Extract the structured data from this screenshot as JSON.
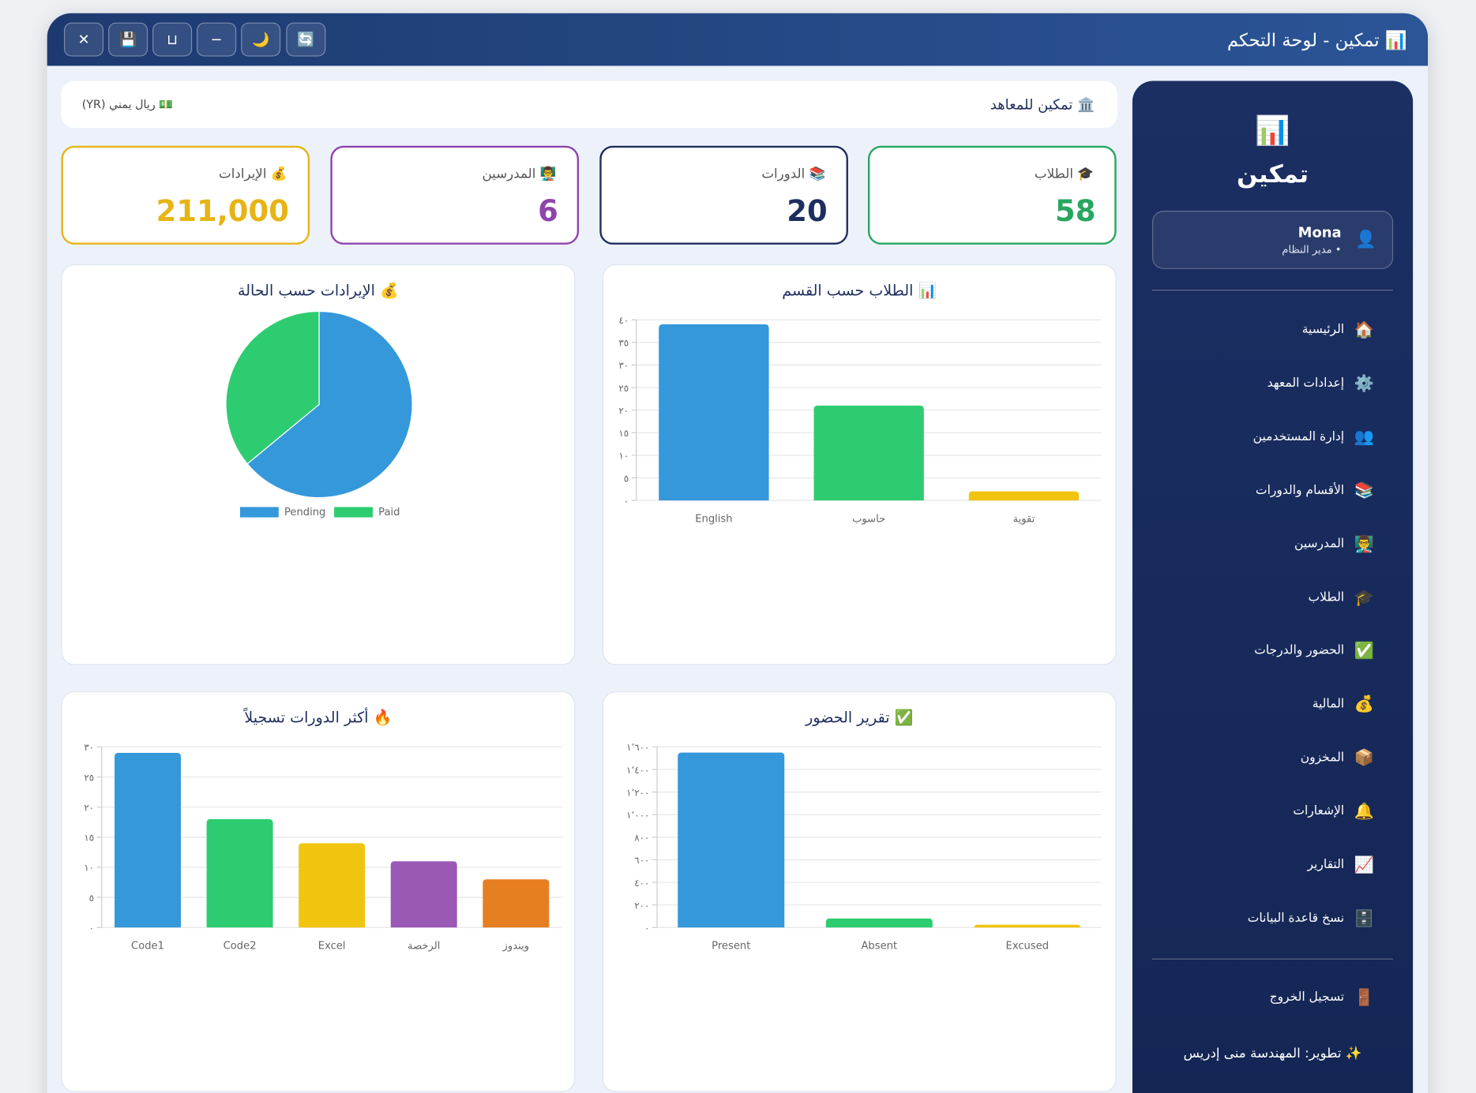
{
  "window": {
    "title": "📊 تمكين - لوحة التحكم",
    "buttons": [
      "✕",
      "💾",
      "⊔",
      "−",
      "🌙",
      "🔄"
    ]
  },
  "header": {
    "institute": "🏛️ تمكين للمعاهد",
    "currency": "💵 ريال يمني (YR)"
  },
  "stats": [
    {
      "label": "🎓 الطلاب",
      "value": 58,
      "color": "#27a65f"
    },
    {
      "label": "📚 الدورات",
      "value": 20,
      "color": "#1e2f5e"
    },
    {
      "label": "👨‍🏫 المدرسين",
      "value": 6,
      "color": "#8e44ad"
    },
    {
      "label": "💰 الإيرادات",
      "value": 211000,
      "value_label": "211,000",
      "color": "#e6b416"
    }
  ],
  "chart_data": [
    {
      "type": "bar",
      "title": "📊 الطلاب حسب القسم",
      "categories": [
        "English",
        "حاسوب",
        "تقوية"
      ],
      "values": [
        39,
        21,
        2
      ],
      "colors": [
        "#3498db",
        "#2ecc71",
        "#f1c40f"
      ],
      "ylim": [
        0,
        40
      ],
      "grid": true,
      "yticks": [
        {
          "value": 0,
          "label": "٠"
        },
        {
          "value": 5,
          "label": "٥"
        },
        {
          "value": 10,
          "label": "١٠"
        },
        {
          "value": 15,
          "label": "١٥"
        },
        {
          "value": 20,
          "label": "٢٠"
        },
        {
          "value": 25,
          "label": "٢٥"
        },
        {
          "value": 30,
          "label": "٣٠"
        },
        {
          "value": 35,
          "label": "٣٥"
        },
        {
          "value": 40,
          "label": "٤٠"
        }
      ]
    },
    {
      "type": "pie",
      "title": "💰 الإيرادات حسب الحالة",
      "categories": [
        "Pending",
        "Paid"
      ],
      "values": [
        64,
        36
      ],
      "colors": [
        "#3498db",
        "#2ecc71"
      ]
    },
    {
      "type": "bar",
      "title": "✅ تقرير الحضور",
      "categories": [
        "Present",
        "Absent",
        "Excused"
      ],
      "values": [
        1550,
        80,
        25
      ],
      "colors": [
        "#3498db",
        "#2ecc71",
        "#f1c40f"
      ],
      "ylim": [
        0,
        1600
      ],
      "grid": true,
      "yticks": [
        {
          "value": 0,
          "label": "٠"
        },
        {
          "value": 200,
          "label": "٢٠٠"
        },
        {
          "value": 400,
          "label": "٤٠٠"
        },
        {
          "value": 600,
          "label": "٦٠٠"
        },
        {
          "value": 800,
          "label": "٨٠٠"
        },
        {
          "value": 1000,
          "label": "١٬٠٠٠"
        },
        {
          "value": 1200,
          "label": "١٬٢٠٠"
        },
        {
          "value": 1400,
          "label": "١٬٤٠٠"
        },
        {
          "value": 1600,
          "label": "١٬٦٠٠"
        }
      ]
    },
    {
      "type": "bar",
      "title": "🔥 أكثر الدورات تسجيلاً",
      "categories": [
        "Code1",
        "Code2",
        "Excel",
        "الرخصة",
        "ويندوز"
      ],
      "values": [
        29,
        18,
        14,
        11,
        8
      ],
      "colors": [
        "#3498db",
        "#2ecc71",
        "#f1c40f",
        "#9b59b6",
        "#e67e22"
      ],
      "ylim": [
        0,
        30
      ],
      "grid": true,
      "yticks": [
        {
          "value": 0,
          "label": "٠"
        },
        {
          "value": 5,
          "label": "٥"
        },
        {
          "value": 10,
          "label": "١٠"
        },
        {
          "value": 15,
          "label": "١٥"
        },
        {
          "value": 20,
          "label": "٢٠"
        },
        {
          "value": 25,
          "label": "٢٥"
        },
        {
          "value": 30,
          "label": "٣٠"
        }
      ]
    }
  ],
  "sidebar": {
    "logo": "📊",
    "brand": "تمكين",
    "user": {
      "icon": "👤",
      "name": "Mona",
      "role": "• مدير النظام"
    },
    "nav": [
      {
        "icon": "🏠",
        "label": "الرئيسية"
      },
      {
        "icon": "⚙️",
        "label": "إعدادات المعهد"
      },
      {
        "icon": "👥",
        "label": "إدارة المستخدمين"
      },
      {
        "icon": "📚",
        "label": "الأقسام والدورات"
      },
      {
        "icon": "👨‍🏫",
        "label": "المدرسين"
      },
      {
        "icon": "🎓",
        "label": "الطلاب"
      },
      {
        "icon": "✅",
        "label": "الحضور والدرجات"
      },
      {
        "icon": "💰",
        "label": "المالية"
      },
      {
        "icon": "📦",
        "label": "المخزون"
      },
      {
        "icon": "🔔",
        "label": "الإشعارات"
      },
      {
        "icon": "📈",
        "label": "التقارير"
      },
      {
        "icon": "🗄️",
        "label": "نسخ قاعدة البيانات"
      }
    ],
    "logout": {
      "icon": "🚪",
      "label": "تسجيل الخروج"
    },
    "footer": "✨ تطوير: المهندسة منى إدريس"
  }
}
